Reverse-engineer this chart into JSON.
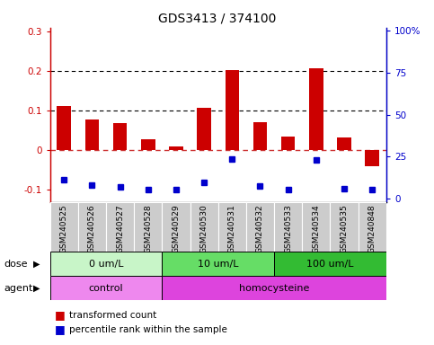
{
  "title": "GDS3413 / 374100",
  "samples": [
    "GSM240525",
    "GSM240526",
    "GSM240527",
    "GSM240528",
    "GSM240529",
    "GSM240530",
    "GSM240531",
    "GSM240532",
    "GSM240533",
    "GSM240534",
    "GSM240535",
    "GSM240848"
  ],
  "red_values": [
    0.112,
    0.078,
    0.068,
    0.028,
    0.01,
    0.108,
    0.202,
    0.072,
    0.035,
    0.207,
    0.033,
    -0.04
  ],
  "blue_values": [
    -0.075,
    -0.088,
    -0.093,
    -0.098,
    -0.098,
    -0.082,
    -0.022,
    -0.091,
    -0.098,
    -0.025,
    -0.097,
    -0.098
  ],
  "ylim_left": [
    -0.13,
    0.31
  ],
  "ylim_right": [
    -2,
    102
  ],
  "yticks_left": [
    -0.1,
    0.0,
    0.1,
    0.2,
    0.3
  ],
  "yticks_right": [
    0,
    25,
    50,
    75,
    100
  ],
  "ytick_labels_right": [
    "0",
    "25",
    "50",
    "75",
    "100%"
  ],
  "dose_groups": [
    {
      "label": "0 um/L",
      "start": 0,
      "end": 4,
      "color": "#c8f5c8"
    },
    {
      "label": "10 um/L",
      "start": 4,
      "end": 8,
      "color": "#66dd66"
    },
    {
      "label": "100 um/L",
      "start": 8,
      "end": 12,
      "color": "#33bb33"
    }
  ],
  "agent_groups": [
    {
      "label": "control",
      "start": 0,
      "end": 4,
      "color": "#ee88ee"
    },
    {
      "label": "homocysteine",
      "start": 4,
      "end": 12,
      "color": "#dd44dd"
    }
  ],
  "red_color": "#cc0000",
  "blue_color": "#0000cc",
  "zero_line_color": "#cc3333",
  "grid_color": "#000000",
  "xtick_bg": "#cccccc",
  "legend_red": "transformed count",
  "legend_blue": "percentile rank within the sample",
  "dose_label": "dose",
  "agent_label": "agent",
  "bar_width": 0.5
}
